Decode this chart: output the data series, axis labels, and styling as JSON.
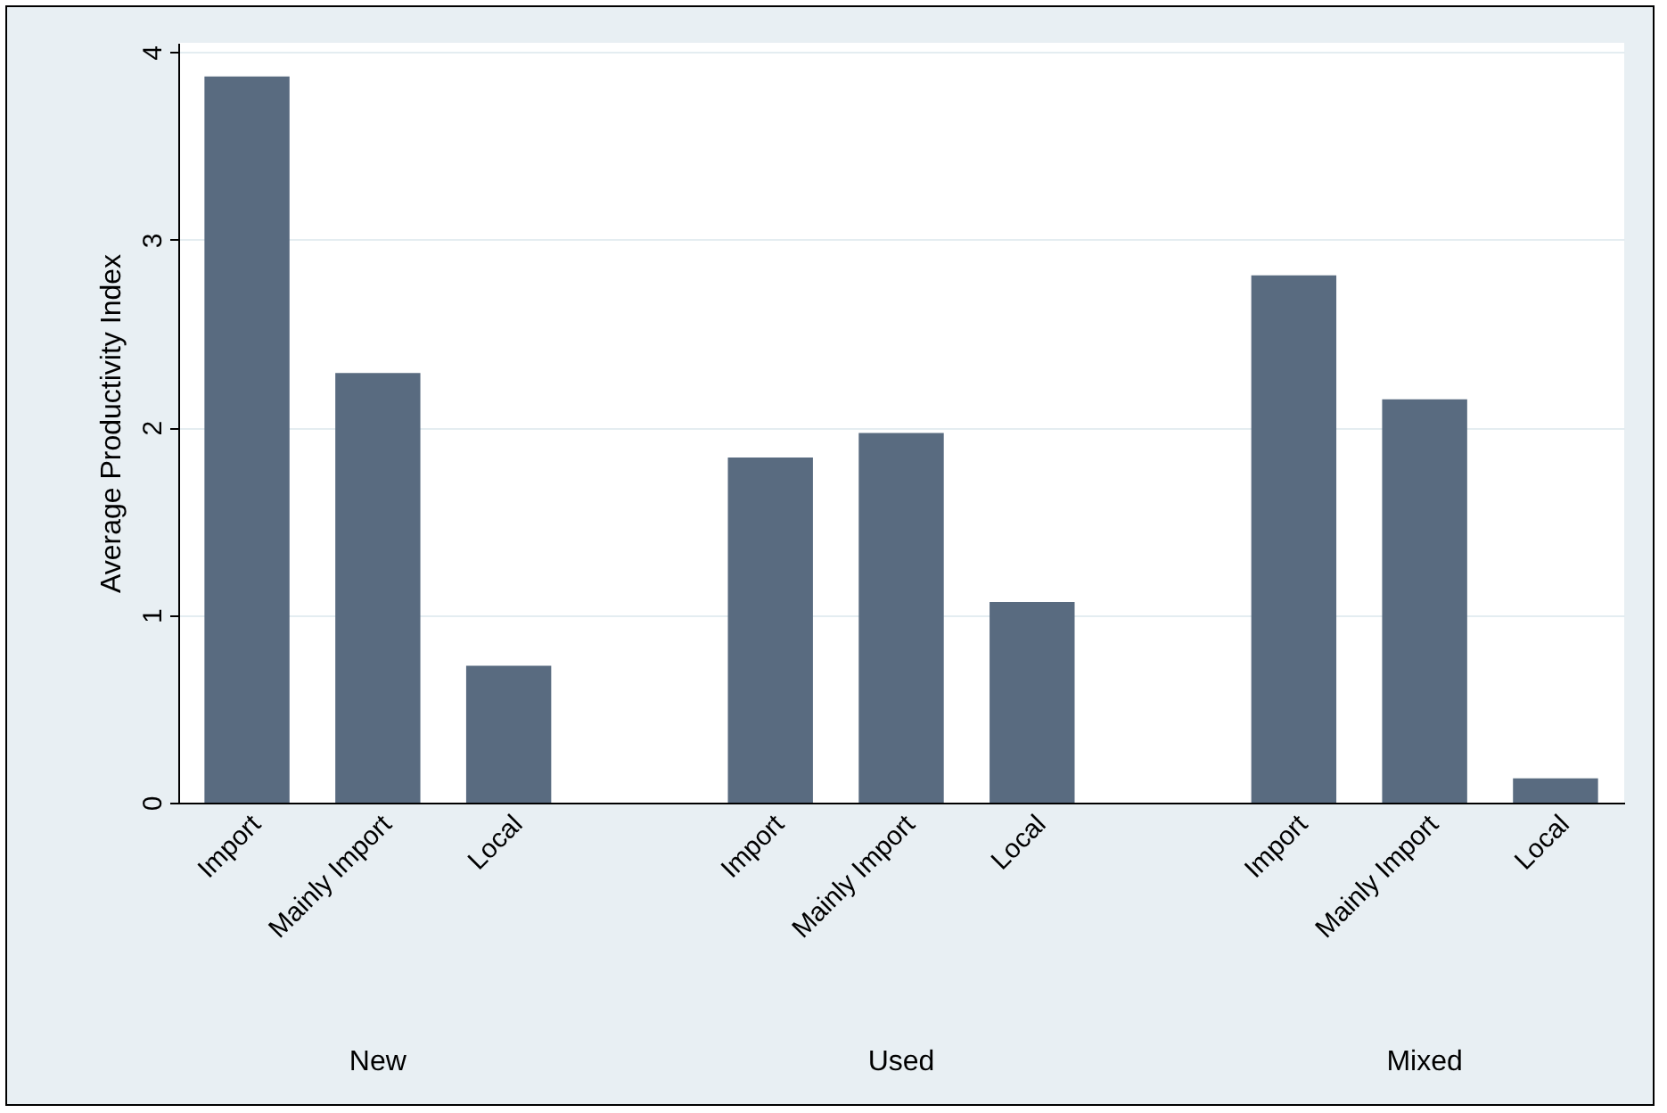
{
  "chart_data": {
    "type": "bar",
    "ylabel": "Average Productivity Index",
    "categories": [
      "Import",
      "Mainly Import",
      "Local",
      "Import",
      "Mainly Import",
      "Local",
      "Import",
      "Mainly Import",
      "Local"
    ],
    "values": [
      3.87,
      2.29,
      0.73,
      1.84,
      1.97,
      1.07,
      2.81,
      2.15,
      0.13
    ],
    "color": "#596b80",
    "ylim": [
      0,
      4.05
    ],
    "yticks": [
      0,
      1,
      2,
      3,
      4
    ],
    "grid": "y",
    "annotations": [
      "New",
      "Used",
      "Mixed"
    ]
  }
}
